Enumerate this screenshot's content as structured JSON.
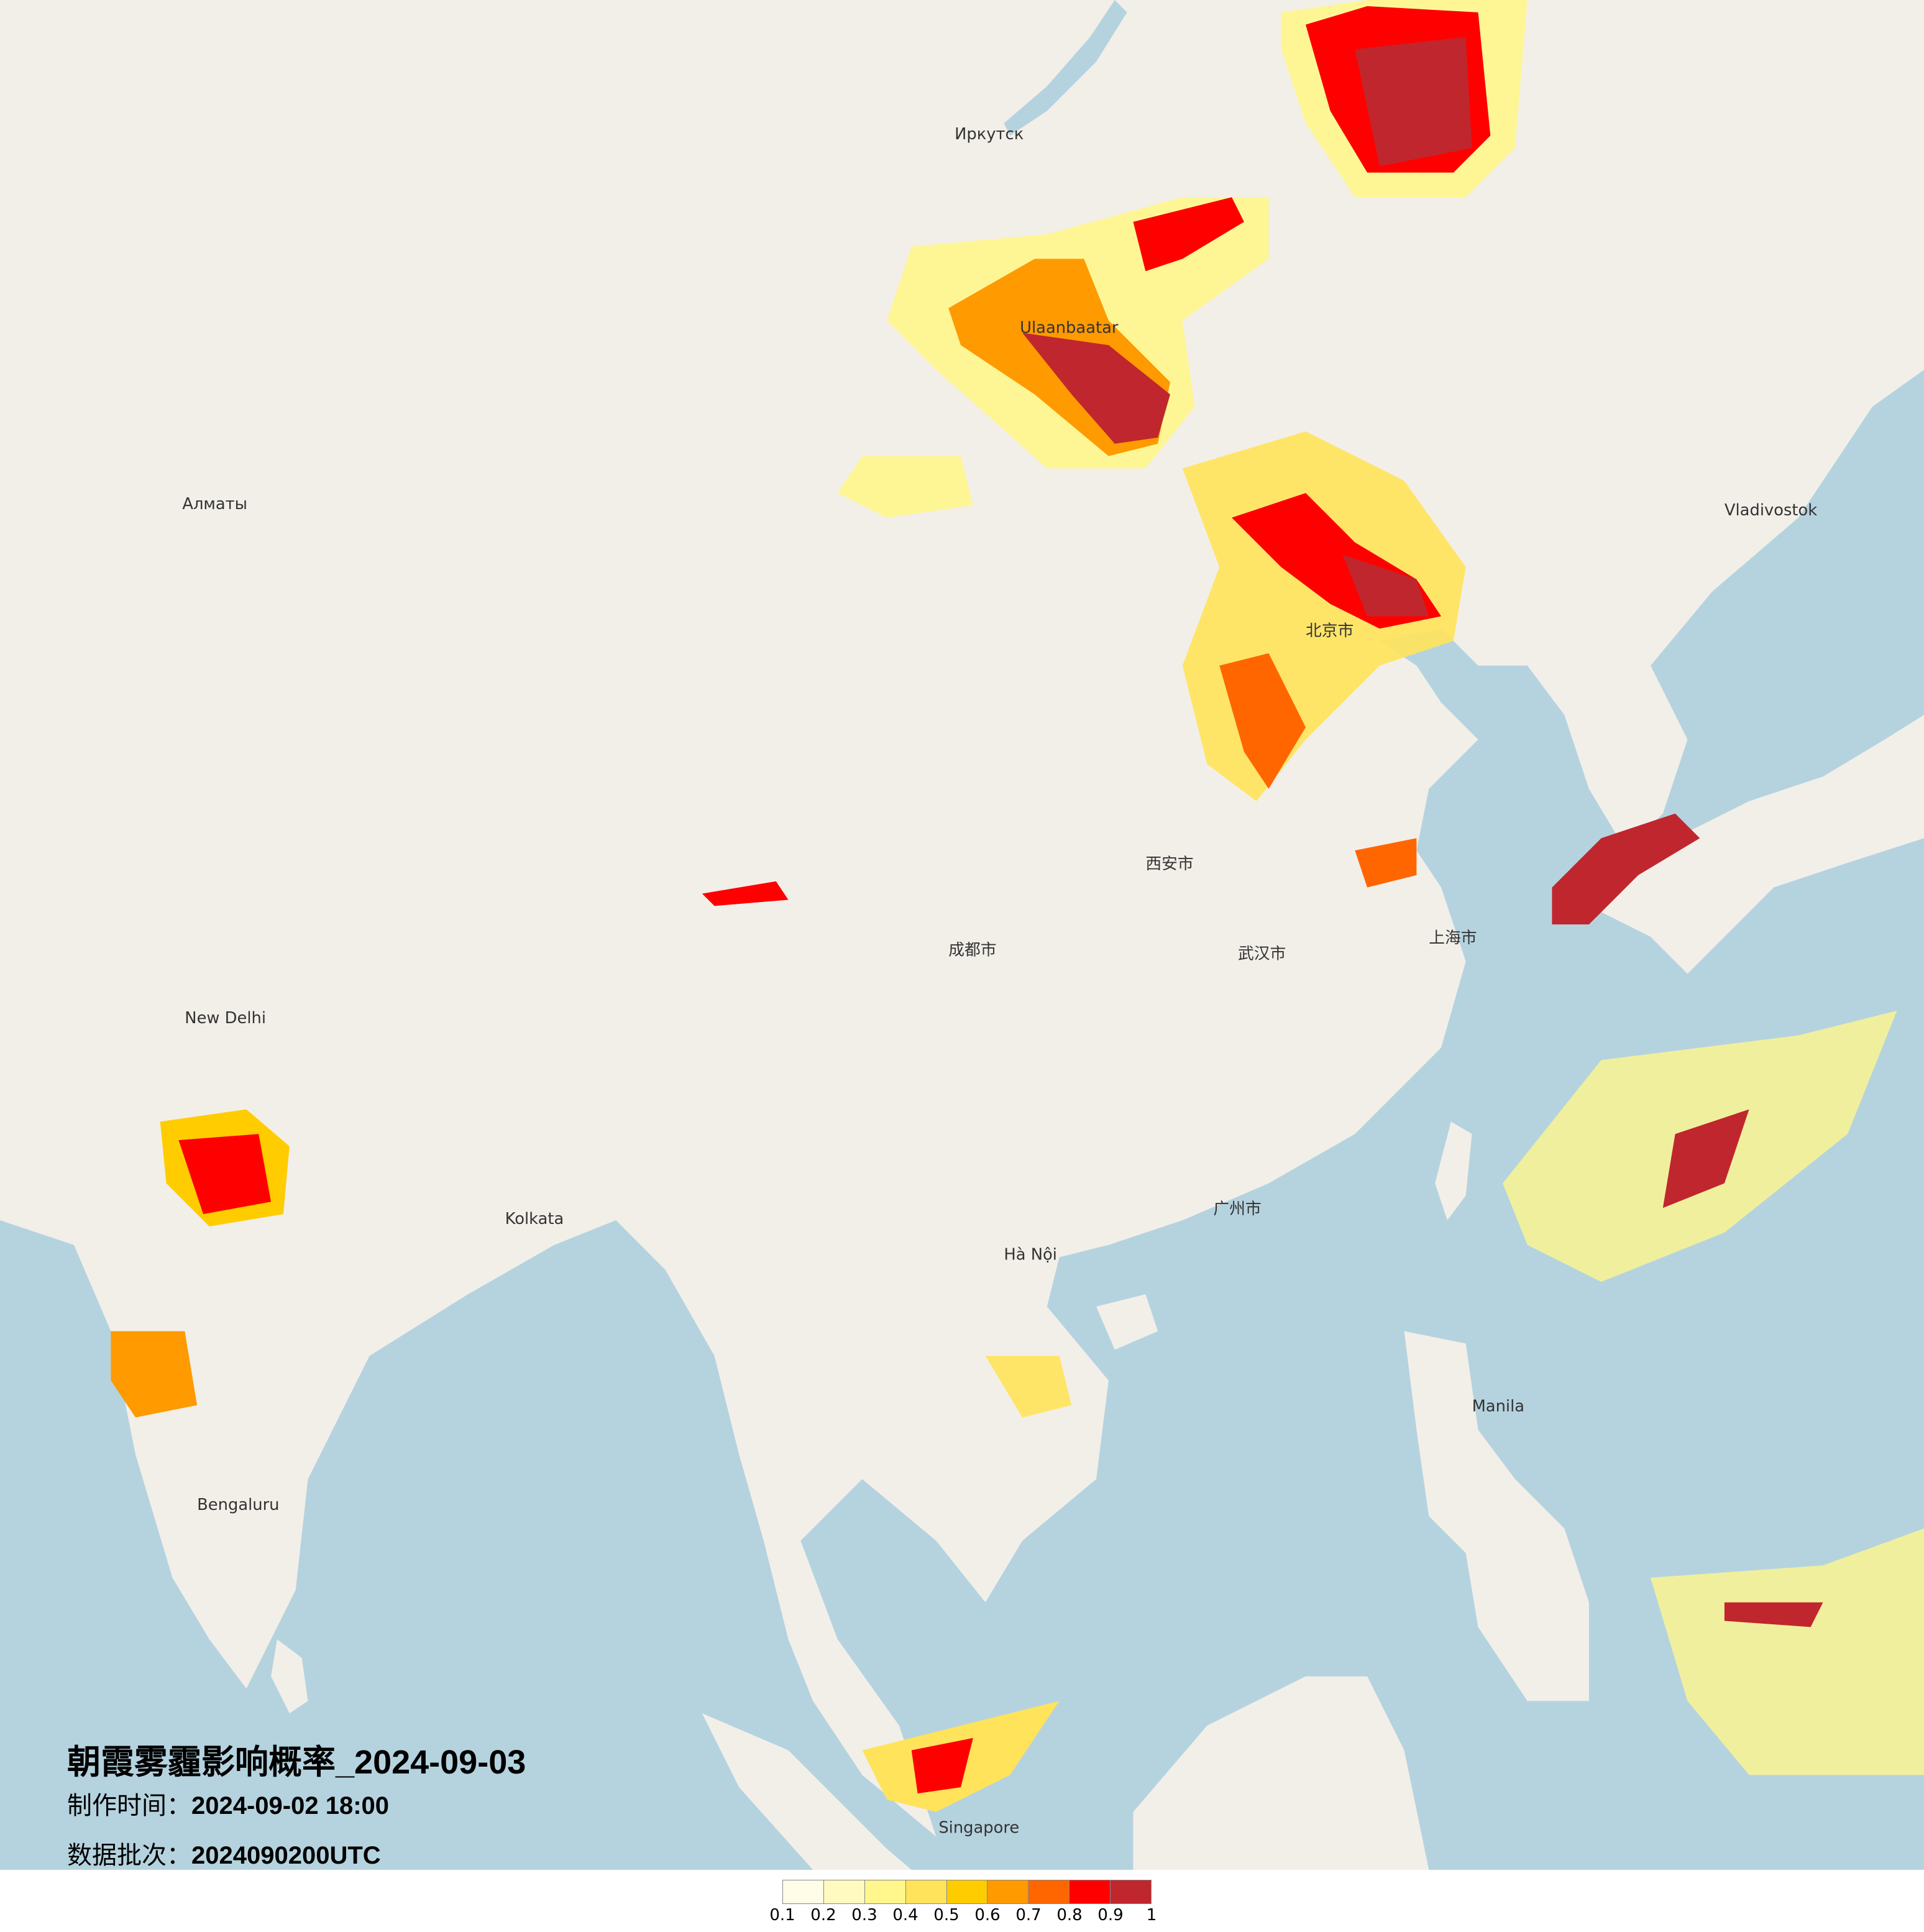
{
  "title": "朝霞雾霾影响概率_2024-09-03",
  "production_time": {
    "label": "制作时间：",
    "value": "2024-09-02 18:00"
  },
  "data_batch": {
    "label": "数据批次：",
    "value": "2024090200UTC"
  },
  "legend": {
    "colors": [
      "#fffde8",
      "#fffbc0",
      "#fff68c",
      "#ffe35a",
      "#ffcc00",
      "#ff9a00",
      "#ff6600",
      "#ff0000",
      "#c0262d"
    ],
    "ticks": [
      "0.1",
      "0.2",
      "0.3",
      "0.4",
      "0.5",
      "0.6",
      "0.7",
      "0.8",
      "0.9",
      "1"
    ]
  },
  "map": {
    "land_color": "#f2efe9",
    "water_color": "#b5d3df",
    "labels": [
      "Ulaanbaatar",
      "北京市",
      "上海市",
      "西安市",
      "成都市",
      "武汉市",
      "广州市",
      "Hà Nội",
      "New Delhi",
      "Kolkata",
      "Bengaluru",
      "Singapore",
      "Manila",
      "Vladivostok",
      "Иркутск",
      "Алматы"
    ]
  }
}
